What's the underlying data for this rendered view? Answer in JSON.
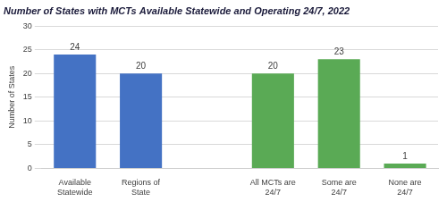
{
  "chart_data": {
    "type": "bar",
    "title": "Number of States with MCTs Available Statewide and Operating 24/7, 2022",
    "ylabel": "Number of States",
    "categories": [
      "Available Statewide",
      "Regions of State",
      null,
      "All MCTs are 24/7",
      "Some are 24/7",
      "None are 24/7"
    ],
    "values": [
      24,
      20,
      null,
      20,
      23,
      1
    ],
    "colors": [
      "#4472c4",
      "#4472c4",
      null,
      "#5aaa55",
      "#5aaa55",
      "#5aaa55"
    ],
    "ylim": [
      0,
      30
    ],
    "yticks": [
      0,
      5,
      10,
      15,
      20,
      25,
      30
    ],
    "grid": true,
    "data_labels": true
  }
}
